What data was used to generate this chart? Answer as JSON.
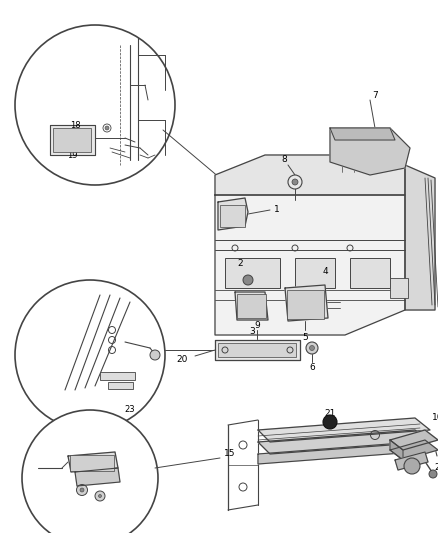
{
  "bg_color": "#ffffff",
  "line_color": "#444444",
  "fig_width": 4.38,
  "fig_height": 5.33,
  "dpi": 100
}
